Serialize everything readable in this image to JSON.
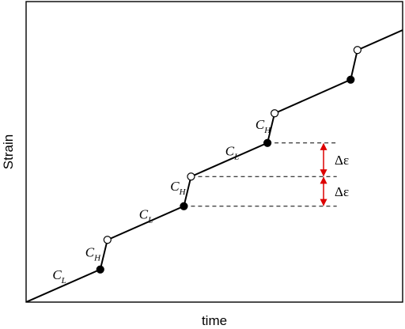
{
  "chart_data": {
    "type": "line",
    "xlabel": "time",
    "ylabel": "Strain",
    "grid": false,
    "x_tick_labels": false,
    "y_tick_labels": false,
    "points": [
      {
        "x": 0.0,
        "y": 0.0,
        "marker": "none"
      },
      {
        "x": 0.197,
        "y": 0.129,
        "marker": "filled"
      },
      {
        "x": 0.216,
        "y": 0.246,
        "marker": "open"
      },
      {
        "x": 0.419,
        "y": 0.379,
        "marker": "filled"
      },
      {
        "x": 0.438,
        "y": 0.496,
        "marker": "open"
      },
      {
        "x": 0.641,
        "y": 0.629,
        "marker": "filled"
      },
      {
        "x": 0.66,
        "y": 0.746,
        "marker": "open"
      },
      {
        "x": 0.862,
        "y": 0.879,
        "marker": "filled"
      },
      {
        "x": 0.88,
        "y": 0.996,
        "marker": "open"
      },
      {
        "x": 1.0,
        "y": 1.075,
        "marker": "none"
      }
    ],
    "annotations": [
      {
        "main": "C",
        "sub": "L",
        "x": 0.07,
        "y": 0.09
      },
      {
        "main": "C",
        "sub": "H",
        "x": 0.157,
        "y": 0.18
      },
      {
        "main": "C",
        "sub": "L",
        "x": 0.3,
        "y": 0.33
      },
      {
        "main": "C",
        "sub": "H",
        "x": 0.383,
        "y": 0.44
      },
      {
        "main": "C",
        "sub": "L",
        "x": 0.529,
        "y": 0.58
      },
      {
        "main": "C",
        "sub": "H",
        "x": 0.609,
        "y": 0.685
      }
    ],
    "strain_increment": {
      "label": "Δε",
      "color": "#dd0000",
      "levels_y": [
        0.629,
        0.496,
        0.379
      ],
      "dashed_to_x": 0.825,
      "arrow_x": 0.79
    },
    "colors": {
      "line": "#000000",
      "marker_fill": "#000000",
      "open_marker_fill": "#ffffff",
      "arrow": "#dd0000"
    }
  }
}
